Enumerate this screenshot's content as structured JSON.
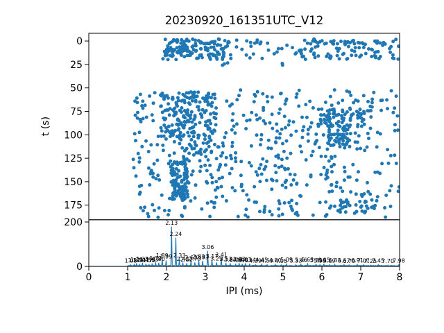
{
  "figure_title": "20230920_161351UTC_V12",
  "colors": {
    "series": "#1f77b4",
    "axis": "#000000",
    "background": "#ffffff"
  },
  "x_axis": {
    "label": "IPI (ms)",
    "tick_labels": [
      "0",
      "1",
      "2",
      "3",
      "4",
      "5",
      "6",
      "7",
      "8"
    ],
    "tick_values": [
      0,
      1,
      2,
      3,
      4,
      5,
      6,
      7,
      8
    ],
    "lim": [
      0,
      8
    ]
  },
  "chart_data": [
    {
      "type": "scatter",
      "ylabel": "t (s)",
      "y_tick_labels": [
        "0",
        "25",
        "50",
        "75",
        "100",
        "125",
        "150",
        "175"
      ],
      "y_tick_values": [
        0,
        25,
        50,
        75,
        100,
        125,
        150,
        175
      ],
      "ylim": [
        -8.2,
        190.6
      ],
      "y_inverted": true,
      "xlim": [
        0,
        8
      ],
      "marker_color": "#1f77b4",
      "marker_radius": 2.5,
      "seed": 7,
      "point_clusters": [
        {
          "x0": 1.95,
          "x1": 3.65,
          "t0": -2,
          "t1": 3,
          "n": 42
        },
        {
          "x0": 3.8,
          "x1": 4.65,
          "t0": -1,
          "t1": 3,
          "n": 9
        },
        {
          "x0": 5.35,
          "x1": 7.95,
          "t0": -2,
          "t1": 3,
          "n": 40
        },
        {
          "x0": 1.85,
          "x1": 3.6,
          "t0": 4,
          "t1": 20,
          "n": 80
        },
        {
          "x0": 2.0,
          "x1": 2.7,
          "t0": 5,
          "t1": 13,
          "n": 35
        },
        {
          "x0": 3.65,
          "x1": 5.25,
          "t0": 4,
          "t1": 19,
          "n": 16
        },
        {
          "x0": 5.3,
          "x1": 8.0,
          "t0": 3,
          "t1": 20,
          "n": 70
        },
        {
          "x0": 3.4,
          "x1": 3.8,
          "t0": 22,
          "t1": 30,
          "n": 3
        },
        {
          "x0": 4.85,
          "x1": 5.05,
          "t0": 20,
          "t1": 26,
          "n": 2
        },
        {
          "x0": 1.3,
          "x1": 8.0,
          "t0": 52,
          "t1": 188,
          "n": 520
        },
        {
          "x0": 1.12,
          "x1": 1.45,
          "t0": 60,
          "t1": 185,
          "n": 18
        },
        {
          "x0": 1.85,
          "x1": 3.3,
          "t0": 54,
          "t1": 102,
          "n": 150
        },
        {
          "x0": 2.12,
          "x1": 2.55,
          "t0": 128,
          "t1": 170,
          "n": 110
        },
        {
          "x0": 5.9,
          "x1": 7.1,
          "t0": 72,
          "t1": 92,
          "n": 55
        },
        {
          "x0": 6.15,
          "x1": 6.75,
          "t0": 90,
          "t1": 112,
          "n": 50
        },
        {
          "x0": 2.3,
          "x1": 3.4,
          "t0": 100,
          "t1": 128,
          "n": 40
        },
        {
          "x0": 6.2,
          "x1": 7.6,
          "t0": 160,
          "t1": 186,
          "n": 30
        }
      ]
    },
    {
      "type": "line",
      "xlabel": "IPI (ms)",
      "y_tick_labels": [
        "0",
        "200"
      ],
      "y_tick_values": [
        0,
        200
      ],
      "ylim": [
        0,
        210
      ],
      "line_color": "#1f77b4",
      "baseline": 0.8,
      "noise_max": 3.5,
      "peak_halfwidth": 0.016,
      "peaks": [
        {
          "x": 1.08,
          "h": 8,
          "label": "1.08"
        },
        {
          "x": 1.17,
          "h": 10,
          "label": "1.17"
        },
        {
          "x": 1.23,
          "h": 13,
          "label": "1.23"
        },
        {
          "x": 1.3,
          "h": 10,
          "label": "1.30"
        },
        {
          "x": 1.38,
          "h": 15,
          "label": "1.38"
        },
        {
          "x": 1.47,
          "h": 11,
          "label": "1.47"
        },
        {
          "x": 1.55,
          "h": 9,
          "label": "1.55"
        },
        {
          "x": 1.63,
          "h": 12,
          "label": "1.63"
        },
        {
          "x": 1.72,
          "h": 18,
          "label": "1.72"
        },
        {
          "x": 1.8,
          "h": 15,
          "label": "1.80"
        },
        {
          "x": 1.89,
          "h": 32,
          "label": "1.89"
        },
        {
          "x": 1.99,
          "h": 26,
          "label": "1.99"
        },
        {
          "x": 2.13,
          "h": 178,
          "label": "2.13"
        },
        {
          "x": 2.24,
          "h": 128,
          "label": "2.24"
        },
        {
          "x": 2.33,
          "h": 32,
          "label": "2.33"
        },
        {
          "x": 2.42,
          "h": 16,
          "label": "2.42"
        },
        {
          "x": 2.52,
          "h": 13,
          "label": "2.52"
        },
        {
          "x": 2.63,
          "h": 22,
          "label": "2.63"
        },
        {
          "x": 2.73,
          "h": 17,
          "label": "2.73"
        },
        {
          "x": 2.83,
          "h": 26,
          "label": "2.83"
        },
        {
          "x": 2.93,
          "h": 24,
          "label": "2.93"
        },
        {
          "x": 3.06,
          "h": 68,
          "label": "3.06"
        },
        {
          "x": 3.17,
          "h": 28,
          "label": "3.17"
        },
        {
          "x": 3.29,
          "h": 17,
          "label": "3.29"
        },
        {
          "x": 3.41,
          "h": 34,
          "label": "3.41"
        },
        {
          "x": 3.53,
          "h": 15,
          "label": "3.53"
        },
        {
          "x": 3.64,
          "h": 13,
          "label": "3.64"
        },
        {
          "x": 3.78,
          "h": 11,
          "label": "3.78"
        },
        {
          "x": 3.87,
          "h": 14,
          "label": "3.87"
        },
        {
          "x": 3.95,
          "h": 10,
          "label": "3.95"
        },
        {
          "x": 4.03,
          "h": 13,
          "label": "4.03"
        },
        {
          "x": 4.14,
          "h": 11,
          "label": "4.14"
        },
        {
          "x": 4.29,
          "h": 8,
          "label": "4.29"
        },
        {
          "x": 4.45,
          "h": 11,
          "label": "4.45"
        },
        {
          "x": 4.59,
          "h": 8,
          "label": "4.59"
        },
        {
          "x": 4.8,
          "h": 10,
          "label": "4.80"
        },
        {
          "x": 4.95,
          "h": 7,
          "label": "4.95"
        },
        {
          "x": 5.09,
          "h": 12,
          "label": "5.09"
        },
        {
          "x": 5.33,
          "h": 8,
          "label": "5.33"
        },
        {
          "x": 5.46,
          "h": 11,
          "label": "5.46"
        },
        {
          "x": 5.63,
          "h": 13,
          "label": "5.63"
        },
        {
          "x": 5.85,
          "h": 10,
          "label": "5.85"
        },
        {
          "x": 5.95,
          "h": 8,
          "label": "5.95"
        },
        {
          "x": 6.05,
          "h": 11,
          "label": "6.05"
        },
        {
          "x": 6.19,
          "h": 8,
          "label": "6.19"
        },
        {
          "x": 6.33,
          "h": 10,
          "label": "6.33"
        },
        {
          "x": 6.57,
          "h": 8,
          "label": "6.57"
        },
        {
          "x": 6.7,
          "h": 7,
          "label": "6.70"
        },
        {
          "x": 6.91,
          "h": 10,
          "label": "6.91"
        },
        {
          "x": 7.07,
          "h": 8,
          "label": "7.07"
        },
        {
          "x": 7.25,
          "h": 6,
          "label": "7.25"
        },
        {
          "x": 7.45,
          "h": 8,
          "label": "7.45"
        },
        {
          "x": 7.7,
          "h": 6,
          "label": "7.70"
        },
        {
          "x": 7.98,
          "h": 8,
          "label": "7.98"
        }
      ]
    }
  ]
}
